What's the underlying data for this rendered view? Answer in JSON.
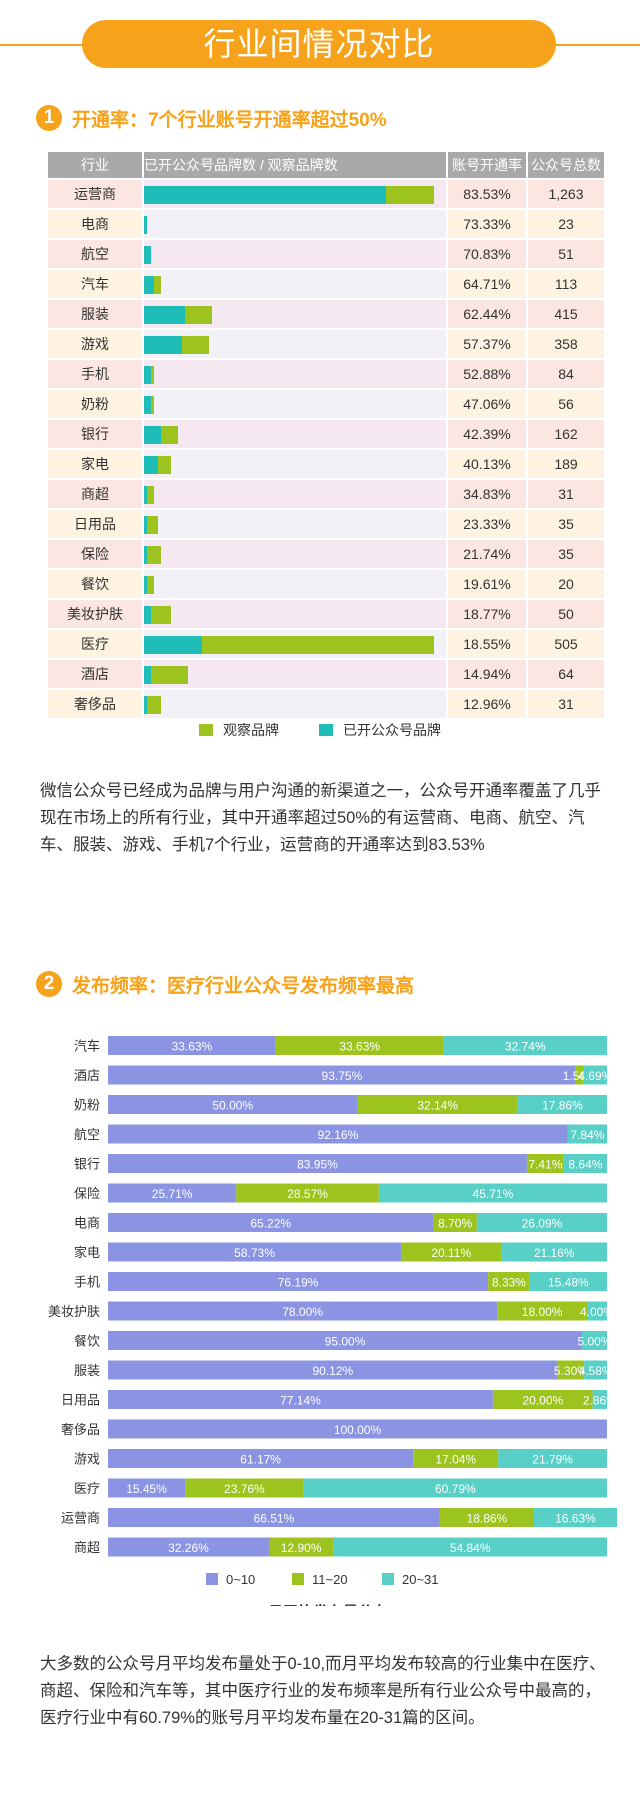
{
  "header": {
    "title": "行业间情况对比"
  },
  "section1": {
    "number": "1",
    "title": "开通率：7个行业账号开通率超过50%",
    "columns": [
      "行业",
      "已开公众号品牌数 / 观察品牌数",
      "账号开通率",
      "公众号总数"
    ],
    "legend": [
      "观察品牌",
      "已开公众号品牌"
    ],
    "paragraph": "微信公众号已经成为品牌与用户沟通的新渠道之一，公众号开通率覆盖了几乎现在市场上的所有行业，其中开通率超过50%的有运营商、电商、航空、汽车、服装、游戏、手机7个行业，运营商的开通率达到83.53%"
  },
  "section2": {
    "number": "2",
    "title": "发布频率：医疗行业公众号发布频率最高",
    "paragraph": "大多数的公众号月平均发布量处于0-10,而月平均发布较高的行业集中在医疗、商超、保险和汽车等，其中医疗行业的发布频率是所有行业公众号中最高的，医疗行业中有60.79%的账号月平均发布量在20-31篇的区间。"
  },
  "chart_data": [
    {
      "type": "table",
      "title": "",
      "columns": [
        "行业",
        "已开公众号品牌数 / 观察品牌数",
        "账号开通率",
        "公众号总数"
      ],
      "bar_series": [
        {
          "name": "观察品牌",
          "color": "#9dc41e"
        },
        {
          "name": "已开公众号品牌",
          "color": "#1fbdb7"
        }
      ],
      "rows": [
        {
          "industry": "运营商",
          "observed": 85,
          "opened": 71,
          "rate": "83.53%",
          "total": "1,263"
        },
        {
          "industry": "电商",
          "observed": 1,
          "opened": 1,
          "rate": "73.33%",
          "total": "23"
        },
        {
          "industry": "航空",
          "observed": 2,
          "opened": 2,
          "rate": "70.83%",
          "total": "51"
        },
        {
          "industry": "汽车",
          "observed": 5,
          "opened": 3,
          "rate": "64.71%",
          "total": "113"
        },
        {
          "industry": "服装",
          "observed": 20,
          "opened": 12,
          "rate": "62.44%",
          "total": "415"
        },
        {
          "industry": "游戏",
          "observed": 19,
          "opened": 11,
          "rate": "57.37%",
          "total": "358"
        },
        {
          "industry": "手机",
          "observed": 3,
          "opened": 2,
          "rate": "52.88%",
          "total": "84"
        },
        {
          "industry": "奶粉",
          "observed": 3,
          "opened": 2,
          "rate": "47.06%",
          "total": "56"
        },
        {
          "industry": "银行",
          "observed": 10,
          "opened": 5,
          "rate": "42.39%",
          "total": "162"
        },
        {
          "industry": "家电",
          "observed": 8,
          "opened": 4,
          "rate": "40.13%",
          "total": "189"
        },
        {
          "industry": "商超",
          "observed": 3,
          "opened": 1,
          "rate": "34.83%",
          "total": "31"
        },
        {
          "industry": "日用品",
          "observed": 4,
          "opened": 1,
          "rate": "23.33%",
          "total": "35"
        },
        {
          "industry": "保险",
          "observed": 5,
          "opened": 1,
          "rate": "21.74%",
          "total": "35"
        },
        {
          "industry": "餐饮",
          "observed": 3,
          "opened": 1,
          "rate": "19.61%",
          "total": "20"
        },
        {
          "industry": "美妆护肤",
          "observed": 8,
          "opened": 2,
          "rate": "18.77%",
          "total": "50"
        },
        {
          "industry": "医疗",
          "observed": 85,
          "opened": 17,
          "rate": "18.55%",
          "total": "505"
        },
        {
          "industry": "酒店",
          "observed": 13,
          "opened": 2,
          "rate": "14.94%",
          "total": "64"
        },
        {
          "industry": "奢侈品",
          "observed": 5,
          "opened": 1,
          "rate": "12.96%",
          "total": "31"
        }
      ]
    },
    {
      "type": "bar",
      "stacked": true,
      "orientation": "horizontal",
      "title": "月平均发布量分布",
      "categories": [
        "汽车",
        "酒店",
        "奶粉",
        "航空",
        "银行",
        "保险",
        "电商",
        "家电",
        "手机",
        "美妆护肤",
        "餐饮",
        "服装",
        "日用品",
        "奢侈品",
        "游戏",
        "医疗",
        "运营商",
        "商超"
      ],
      "series": [
        {
          "name": "0~10",
          "color": "#8b94e3",
          "values": [
            33.63,
            93.75,
            50.0,
            92.16,
            83.95,
            25.71,
            65.22,
            58.73,
            76.19,
            78.0,
            95.0,
            90.12,
            77.14,
            100.0,
            61.17,
            15.45,
            66.51,
            32.26
          ]
        },
        {
          "name": "11~20",
          "color": "#9dc41e",
          "values": [
            33.63,
            1.56,
            32.14,
            null,
            7.41,
            28.57,
            8.7,
            20.11,
            8.33,
            18.0,
            null,
            5.3,
            20.0,
            null,
            17.04,
            23.76,
            18.86,
            12.9
          ]
        },
        {
          "name": "20~31",
          "color": "#58d0c7",
          "values": [
            32.74,
            4.69,
            17.86,
            7.84,
            8.64,
            45.71,
            26.09,
            21.16,
            15.48,
            4.0,
            5.0,
            4.58,
            2.86,
            null,
            21.79,
            60.79,
            16.63,
            54.84
          ]
        }
      ],
      "xlim": [
        0,
        100
      ]
    }
  ]
}
